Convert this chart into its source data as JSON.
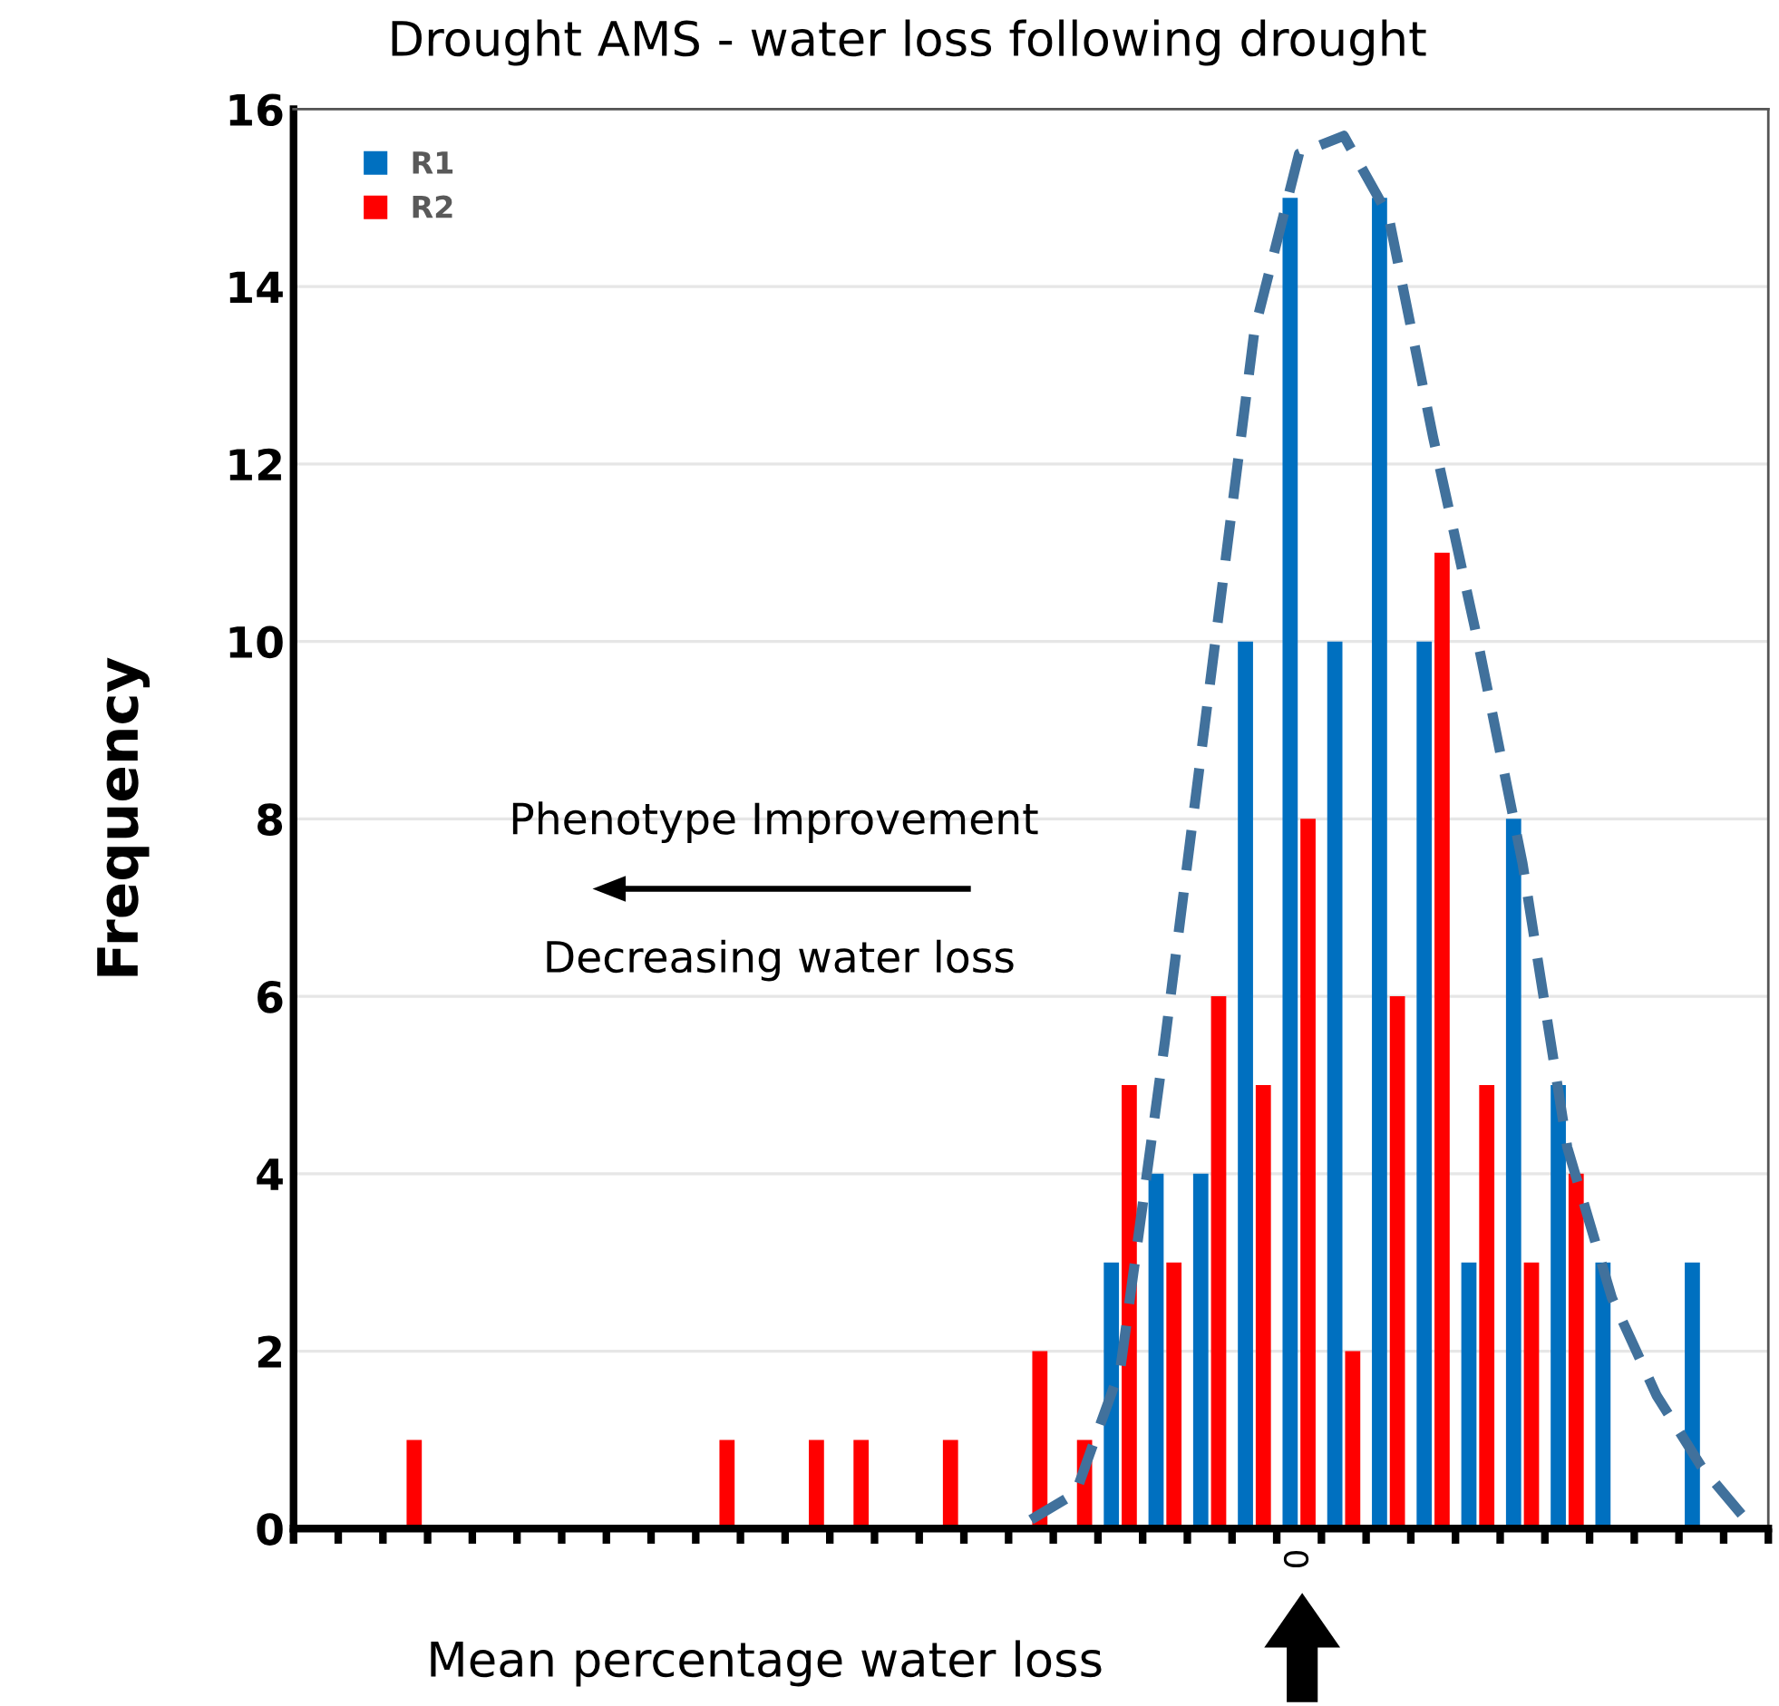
{
  "chart_data": {
    "type": "bar",
    "title": "Drought AMS - water loss following drought",
    "xlabel": "Mean percentage water loss",
    "ylabel": "Frequency",
    "categories": [
      null,
      null,
      null,
      null,
      null,
      null,
      null,
      null,
      null,
      null,
      null,
      null,
      null,
      null,
      null,
      null,
      null,
      null,
      null,
      null,
      null,
      null,
      "0",
      null,
      null,
      null,
      null,
      null,
      null,
      null,
      null,
      null,
      null
    ],
    "series": [
      {
        "name": "R1",
        "color": "#0070c0",
        "values": [
          null,
          null,
          null,
          null,
          null,
          null,
          null,
          null,
          null,
          null,
          null,
          null,
          null,
          null,
          null,
          null,
          null,
          null,
          3,
          4,
          4,
          10,
          15,
          10,
          15,
          10,
          3,
          8,
          5,
          3,
          null,
          3,
          null
        ]
      },
      {
        "name": "R2",
        "color": "#ff0000",
        "values": [
          null,
          null,
          1,
          null,
          null,
          null,
          null,
          null,
          null,
          1,
          null,
          1,
          1,
          null,
          1,
          null,
          2,
          1,
          5,
          3,
          6,
          5,
          8,
          2,
          6,
          11,
          5,
          3,
          4,
          null,
          null,
          null,
          null
        ]
      },
      {
        "type": "line",
        "color": "#41719c",
        "line_style": "dashed",
        "values": [
          null,
          null,
          null,
          null,
          null,
          null,
          null,
          null,
          null,
          null,
          null,
          null,
          null,
          null,
          null,
          null,
          0.1,
          0.4,
          1.8,
          5.5,
          9.5,
          13.5,
          15.5,
          15.7,
          14.8,
          12.3,
          10,
          7.5,
          4.3,
          2.6,
          1.5,
          0.7,
          0.1
        ]
      }
    ],
    "ylim": [
      0,
      16
    ],
    "yticks": [
      0,
      2,
      4,
      6,
      8,
      10,
      12,
      14,
      16
    ],
    "grid": "y",
    "legend": "top left",
    "annotations": [
      "Phenotype Improvement",
      "Decreasing water loss"
    ]
  }
}
